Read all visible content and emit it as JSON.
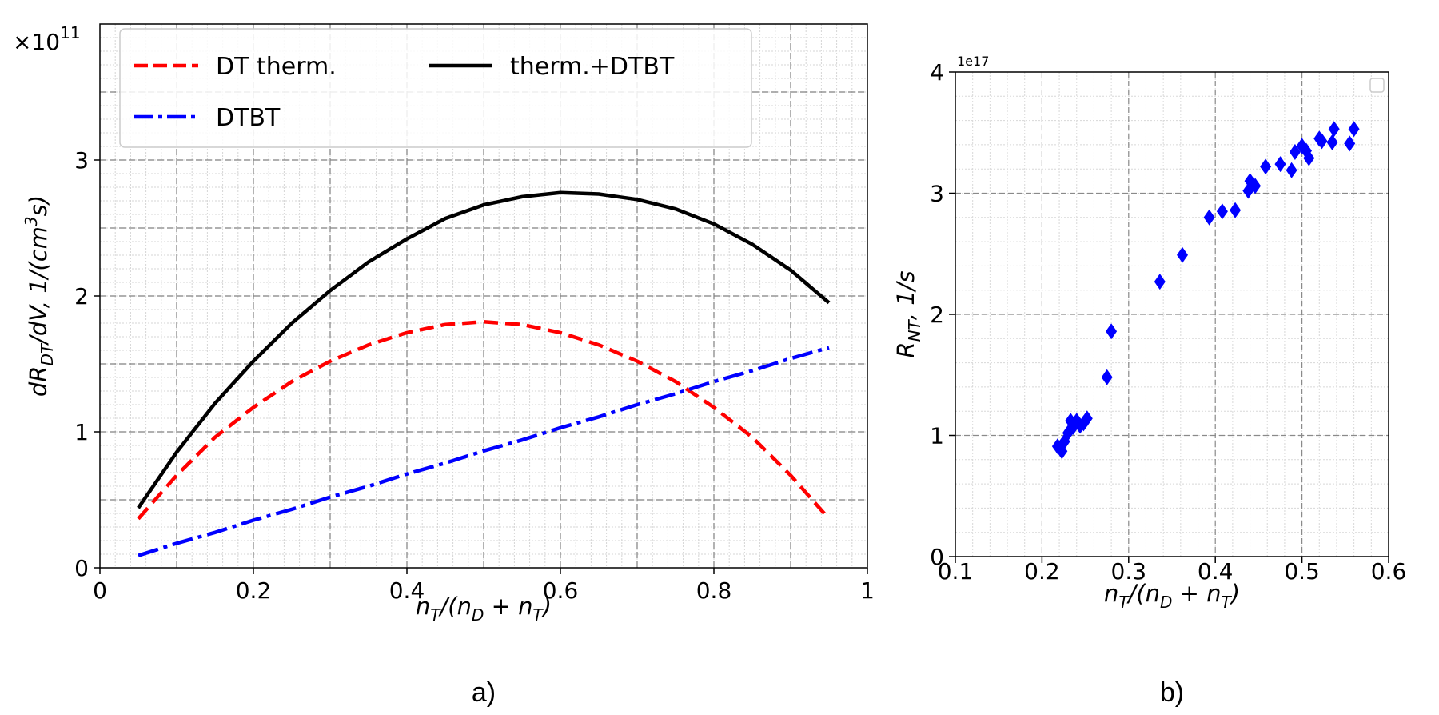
{
  "panels": [
    "a)",
    "b)"
  ],
  "chart_data": [
    {
      "type": "line",
      "title": "",
      "xlabel": "n_T/(n_D + n_T)",
      "ylabel": "dR_DT/dV, 1/(cm^3 s)",
      "y_multiplier": "×10",
      "y_multiplier_exp": "11",
      "xlim": [
        0,
        1
      ],
      "ylim": [
        0,
        4
      ],
      "x_ticks": [
        "0",
        "0.2",
        "0.4",
        "0.6",
        "0.8",
        "1"
      ],
      "y_ticks": [
        "0",
        "1",
        "2",
        "3"
      ],
      "grid": true,
      "legend_placement": "top-left",
      "x": [
        0.05,
        0.1,
        0.15,
        0.2,
        0.25,
        0.3,
        0.35,
        0.4,
        0.45,
        0.5,
        0.55,
        0.6,
        0.65,
        0.7,
        0.75,
        0.8,
        0.85,
        0.9,
        0.95
      ],
      "series": [
        {
          "name": "DT therm.",
          "color": "#ff0000",
          "style": "dashed",
          "values": [
            0.36,
            0.68,
            0.96,
            1.18,
            1.37,
            1.52,
            1.64,
            1.73,
            1.79,
            1.81,
            1.79,
            1.73,
            1.64,
            1.52,
            1.37,
            1.18,
            0.96,
            0.68,
            0.36
          ]
        },
        {
          "name": "DTBT",
          "color": "#0000ff",
          "style": "dashdot",
          "values": [
            0.09,
            0.18,
            0.26,
            0.35,
            0.43,
            0.52,
            0.6,
            0.69,
            0.77,
            0.86,
            0.94,
            1.03,
            1.11,
            1.2,
            1.28,
            1.37,
            1.45,
            1.54,
            1.62
          ]
        },
        {
          "name": "therm.+DTBT",
          "color": "#000000",
          "style": "solid",
          "values": [
            0.44,
            0.85,
            1.21,
            1.52,
            1.8,
            2.04,
            2.25,
            2.42,
            2.57,
            2.67,
            2.73,
            2.76,
            2.75,
            2.71,
            2.64,
            2.53,
            2.38,
            2.19,
            1.95
          ]
        }
      ]
    },
    {
      "type": "scatter",
      "title": "",
      "xlabel": "n_T/(n_D + n_T)",
      "ylabel": "R_NT, 1/s",
      "y_multiplier": "1e17",
      "xlim": [
        0.1,
        0.6
      ],
      "ylim": [
        0,
        4
      ],
      "x_ticks": [
        "0.1",
        "0.2",
        "0.3",
        "0.4",
        "0.5",
        "0.6"
      ],
      "y_ticks": [
        "0",
        "1",
        "2",
        "3",
        "4"
      ],
      "grid": true,
      "legend_placement": "top-right",
      "series": [
        {
          "color": "#0000ff",
          "marker": "diamond",
          "x": [
            0.218,
            0.223,
            0.226,
            0.23,
            0.233,
            0.236,
            0.24,
            0.244,
            0.248,
            0.252,
            0.275,
            0.28,
            0.336,
            0.362,
            0.393,
            0.408,
            0.423,
            0.438,
            0.44,
            0.446,
            0.458,
            0.475,
            0.488,
            0.492,
            0.5,
            0.505,
            0.508,
            0.52,
            0.523,
            0.535,
            0.537,
            0.555,
            0.56
          ],
          "y": [
            0.91,
            0.87,
            0.95,
            1.02,
            1.12,
            1.07,
            1.12,
            1.08,
            1.1,
            1.14,
            1.48,
            1.86,
            2.27,
            2.49,
            2.8,
            2.85,
            2.86,
            3.02,
            3.1,
            3.06,
            3.22,
            3.24,
            3.19,
            3.34,
            3.39,
            3.35,
            3.29,
            3.45,
            3.43,
            3.42,
            3.53,
            3.41,
            3.53
          ]
        }
      ]
    }
  ]
}
